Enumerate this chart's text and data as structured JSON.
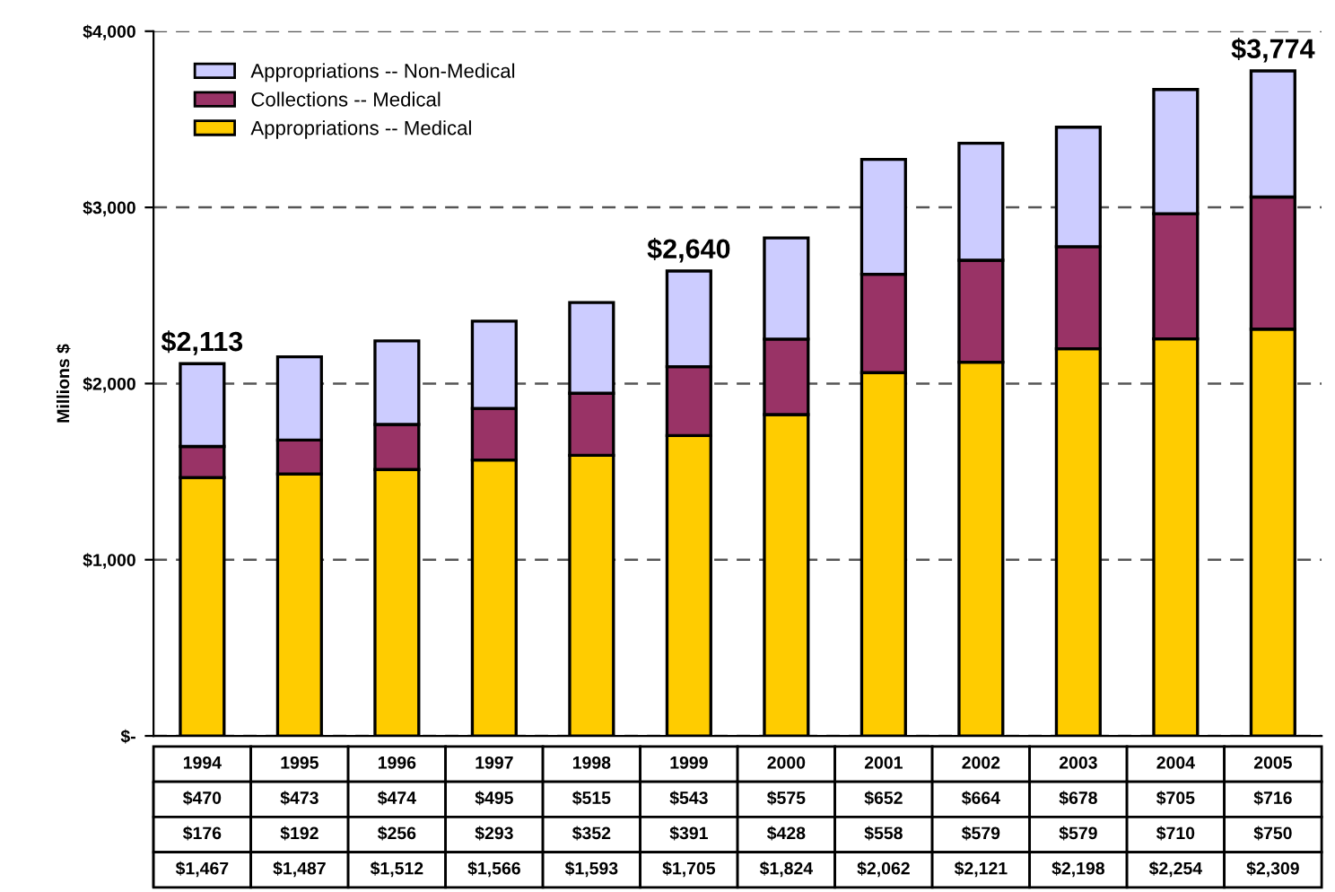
{
  "chart_data": {
    "type": "bar",
    "stacked": true,
    "ylabel": "Millions $",
    "categories": [
      "1994",
      "1995",
      "1996",
      "1997",
      "1998",
      "1999",
      "2000",
      "2001",
      "2002",
      "2003",
      "2004",
      "2005"
    ],
    "series": [
      {
        "name": "Appropriations -- Medical",
        "color": "#ffcc00",
        "values": [
          1467,
          1487,
          1512,
          1566,
          1593,
          1705,
          1824,
          2062,
          2121,
          2198,
          2254,
          2309
        ],
        "value_labels": [
          "$1,467",
          "$1,487",
          "$1,512",
          "$1,566",
          "$1,593",
          "$1,705",
          "$1,824",
          "$2,062",
          "$2,121",
          "$2,198",
          "$2,254",
          "$2,309"
        ]
      },
      {
        "name": "Collections -- Medical",
        "color": "#993366",
        "values": [
          176,
          192,
          256,
          293,
          352,
          391,
          428,
          558,
          579,
          579,
          710,
          750
        ],
        "value_labels": [
          "$176",
          "$192",
          "$256",
          "$293",
          "$352",
          "$391",
          "$428",
          "$558",
          "$579",
          "$579",
          "$710",
          "$750"
        ]
      },
      {
        "name": "Appropriations -- Non-Medical",
        "color": "#ccccff",
        "values": [
          470,
          473,
          474,
          495,
          515,
          543,
          575,
          652,
          664,
          678,
          705,
          716
        ],
        "value_labels": [
          "$470",
          "$473",
          "$474",
          "$495",
          "$515",
          "$543",
          "$575",
          "$652",
          "$664",
          "$678",
          "$705",
          "$716"
        ]
      }
    ],
    "totals": [
      "$2,113",
      null,
      null,
      null,
      null,
      "$2,640",
      null,
      null,
      null,
      null,
      null,
      "$3,774"
    ],
    "ylim": [
      0,
      4000
    ],
    "yticks": [
      {
        "value": 0,
        "label": "$-"
      },
      {
        "value": 1000,
        "label": "$1,000"
      },
      {
        "value": 2000,
        "label": "$2,000"
      },
      {
        "value": 3000,
        "label": "$3,000"
      },
      {
        "value": 4000,
        "label": "$4,000"
      }
    ],
    "grid": "y",
    "legend": "top left"
  }
}
